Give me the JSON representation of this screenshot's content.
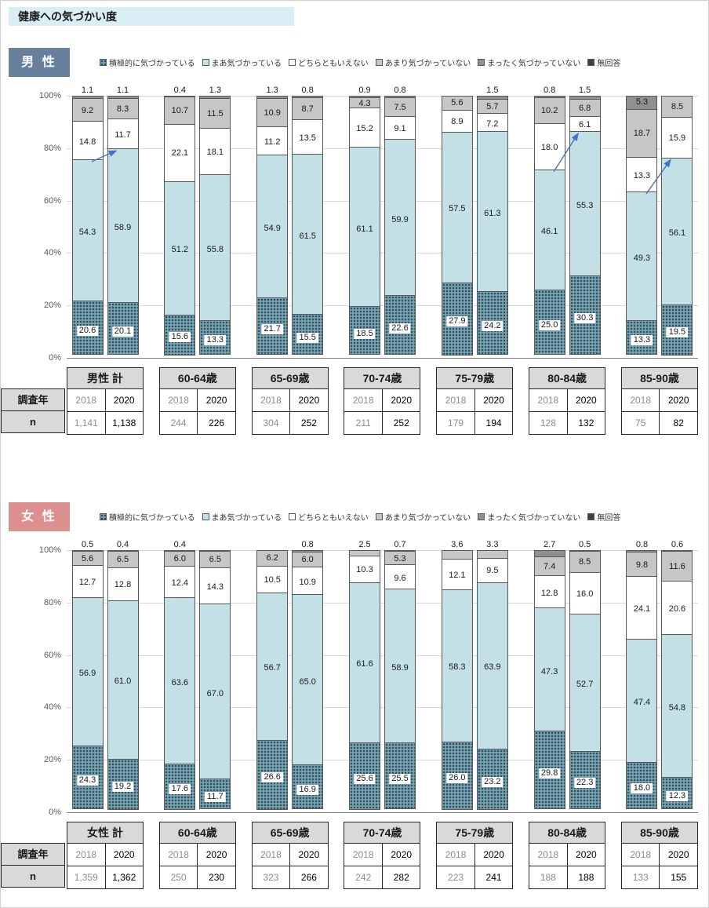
{
  "title": "健康への気づかい度",
  "row_labels": {
    "survey_year": "調査年",
    "n": "n"
  },
  "chart_data": {
    "type": "bar",
    "stacked": true,
    "unit": "%",
    "segment_order": "bottom_to_top",
    "y_axis": {
      "min": 0,
      "max": 100,
      "tick_labels": [
        "100%",
        "80%",
        "60%",
        "40%",
        "20%",
        "0%"
      ],
      "grid": true
    },
    "legend": [
      "積極的に気づかっている",
      "まあ気づかっている",
      "どちらともいえない",
      "あまり気づかっていない",
      "まったく気づかっていない",
      "無回答"
    ],
    "colors": {
      "series": [
        "#7ba2b1",
        "#c2e0e6",
        "#ffffff",
        "#c6c6c6",
        "#909090",
        "#3f3f3f"
      ],
      "series0_dot": "#2a5263",
      "grid": "#d9d9d9",
      "baseline": "#7f7f7f",
      "arrow": "#4472c4",
      "title_bg": "#d9eef5",
      "table_header_bg": "#d9d9d9"
    },
    "charts": [
      {
        "title": "男 性",
        "accent": "#66809e",
        "groups": [
          {
            "name": "男性 計",
            "years": [
              "2018",
              "2020"
            ],
            "n": [
              "1,141",
              "1,138"
            ],
            "values_2018": [
              20.6,
              54.3,
              14.8,
              9.2,
              1.1
            ],
            "values_2020": [
              20.1,
              58.9,
              11.7,
              8.3,
              1.1
            ]
          },
          {
            "name": "60-64歳",
            "years": [
              "2018",
              "2020"
            ],
            "n": [
              "244",
              "226"
            ],
            "values_2018": [
              15.6,
              51.2,
              22.1,
              10.7,
              0.4
            ],
            "values_2020": [
              13.3,
              55.8,
              18.1,
              11.5,
              1.3
            ]
          },
          {
            "name": "65-69歳",
            "years": [
              "2018",
              "2020"
            ],
            "n": [
              "304",
              "252"
            ],
            "values_2018": [
              21.7,
              54.9,
              11.2,
              10.9,
              1.3
            ],
            "values_2020": [
              15.5,
              61.5,
              13.5,
              8.7,
              0.8
            ]
          },
          {
            "name": "70-74歳",
            "years": [
              "2018",
              "2020"
            ],
            "n": [
              "211",
              "252"
            ],
            "values_2018": [
              18.5,
              61.1,
              15.2,
              4.3,
              0.9
            ],
            "values_2020": [
              22.6,
              59.9,
              9.1,
              7.5,
              0.8
            ]
          },
          {
            "name": "75-79歳",
            "years": [
              "2018",
              "2020"
            ],
            "n": [
              "179",
              "194"
            ],
            "values_2018": [
              27.9,
              57.5,
              8.9,
              5.6,
              0
            ],
            "values_2020": [
              24.2,
              61.3,
              7.2,
              5.7,
              1.5
            ]
          },
          {
            "name": "80-84歳",
            "years": [
              "2018",
              "2020"
            ],
            "n": [
              "128",
              "132"
            ],
            "values_2018": [
              25.0,
              46.1,
              18.0,
              10.2,
              0.8
            ],
            "values_2020": [
              30.3,
              55.3,
              6.1,
              6.8,
              1.5
            ]
          },
          {
            "name": "85-90歳",
            "years": [
              "2018",
              "2020"
            ],
            "n": [
              "75",
              "82"
            ],
            "values_2018": [
              13.3,
              49.3,
              13.3,
              18.7,
              5.3
            ],
            "values_2020": [
              19.5,
              56.1,
              15.9,
              8.5,
              0
            ]
          }
        ],
        "arrows": [
          {
            "group": 0,
            "from_pct": 74.9,
            "to_pct": 79.0
          },
          {
            "group": 5,
            "from_pct": 71.1,
            "to_pct": 85.6
          },
          {
            "group": 6,
            "from_pct": 62.6,
            "to_pct": 75.6
          }
        ]
      },
      {
        "title": "女 性",
        "accent": "#de8f8f",
        "groups": [
          {
            "name": "女性 計",
            "years": [
              "2018",
              "2020"
            ],
            "n": [
              "1,359",
              "1,362"
            ],
            "values_2018": [
              24.3,
              56.9,
              12.7,
              5.6,
              0.5
            ],
            "values_2020": [
              19.2,
              61.0,
              12.8,
              6.5,
              0.4
            ]
          },
          {
            "name": "60-64歳",
            "years": [
              "2018",
              "2020"
            ],
            "n": [
              "250",
              "230"
            ],
            "values_2018": [
              17.6,
              63.6,
              12.4,
              6.0,
              0.4
            ],
            "values_2020": [
              11.7,
              67.0,
              14.3,
              6.5,
              0.5
            ],
            "hide_2020": [
              4
            ]
          },
          {
            "name": "65-69歳",
            "years": [
              "2018",
              "2020"
            ],
            "n": [
              "323",
              "266"
            ],
            "values_2018": [
              26.6,
              56.7,
              10.5,
              6.2,
              0
            ],
            "values_2020": [
              16.9,
              65.0,
              10.9,
              6.0,
              0.8
            ]
          },
          {
            "name": "70-74歳",
            "years": [
              "2018",
              "2020"
            ],
            "n": [
              "242",
              "282"
            ],
            "values_2018": [
              25.6,
              61.6,
              10.3,
              2.5,
              0
            ],
            "values_2020": [
              25.5,
              58.9,
              9.6,
              5.3,
              0.7
            ]
          },
          {
            "name": "75-79歳",
            "years": [
              "2018",
              "2020"
            ],
            "n": [
              "223",
              "241"
            ],
            "values_2018": [
              26.0,
              58.3,
              12.1,
              3.6,
              0
            ],
            "values_2020": [
              23.2,
              63.9,
              9.5,
              3.3,
              0
            ]
          },
          {
            "name": "80-84歳",
            "years": [
              "2018",
              "2020"
            ],
            "n": [
              "188",
              "188"
            ],
            "values_2018": [
              29.8,
              47.3,
              12.8,
              7.4,
              2.7
            ],
            "values_2020": [
              22.3,
              52.7,
              16.0,
              8.5,
              0.5
            ]
          },
          {
            "name": "85-90歳",
            "years": [
              "2018",
              "2020"
            ],
            "n": [
              "133",
              "155"
            ],
            "values_2018": [
              18.0,
              47.4,
              24.1,
              9.8,
              0.8
            ],
            "values_2020": [
              12.3,
              54.8,
              20.6,
              11.6,
              0.6
            ]
          }
        ],
        "arrows": []
      }
    ]
  }
}
